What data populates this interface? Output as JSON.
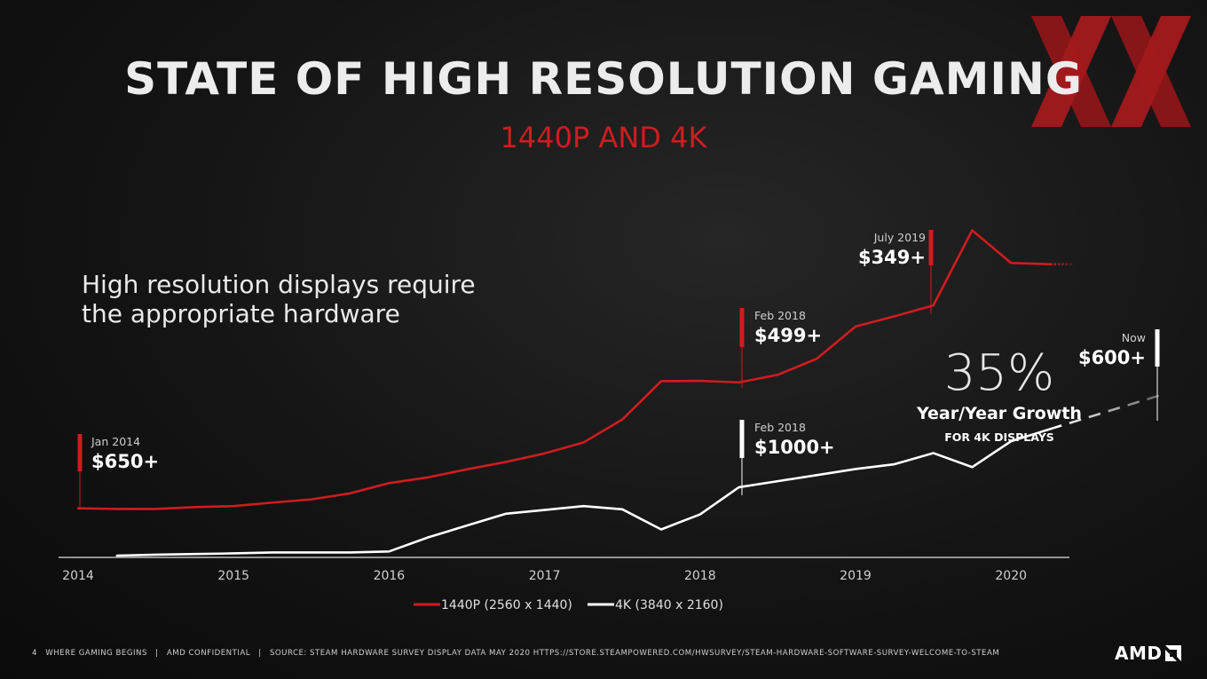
{
  "slide": {
    "title": "STATE OF HIGH RESOLUTION GAMING",
    "subtitle": "1440P AND 4K",
    "note_line1": "High resolution displays require",
    "note_line2": "the appropriate hardware",
    "growth_pct": "35%",
    "growth_label": "Year/Year Growth",
    "growth_sub": "FOR 4K DISPLAYS",
    "logo_text": "AMD",
    "xx_logo_text": "XX"
  },
  "footer": {
    "page_number": "4",
    "tagline": "WHERE GAMING BEGINS",
    "confidential": "AMD CONFIDENTIAL",
    "source": "SOURCE: STEAM HARDWARE SURVEY DISPLAY DATA MAY 2020 HTTPS://STORE.STEAMPOWERED.COM/HWSURVEY/STEAM-HARDWARE-SOFTWARE-SURVEY-WELCOME-TO-STEAM",
    "separator": "|"
  },
  "colors": {
    "accent_red": "#d01c1f",
    "line_white": "#ffffff",
    "axis": "#cfcfcf"
  },
  "chart_data": {
    "type": "line",
    "title": "",
    "xlabel": "",
    "ylabel": "",
    "x_ticks": [
      "2014",
      "2015",
      "2016",
      "2017",
      "2018",
      "2019",
      "2020"
    ],
    "xlim": [
      2014.0,
      2020.4
    ],
    "ylim": [
      0,
      100
    ],
    "grid": false,
    "y_axis_labeled": false,
    "legend_position": "bottom-center",
    "series": [
      {
        "name": "1440P (2560 x 1440)",
        "color": "#d01c1f",
        "x": [
          2014.0,
          2014.25,
          2014.5,
          2014.75,
          2015.0,
          2015.25,
          2015.5,
          2015.75,
          2016.0,
          2016.25,
          2016.5,
          2016.75,
          2017.0,
          2017.25,
          2017.5,
          2017.75,
          2018.0,
          2018.25,
          2018.5,
          2018.75,
          2019.0,
          2019.25,
          2019.5,
          2019.75,
          2020.0,
          2020.25
        ],
        "y": [
          14.8,
          14.6,
          14.6,
          15.2,
          15.5,
          16.6,
          17.6,
          19.5,
          22.7,
          24.5,
          27.0,
          29.3,
          32.0,
          35.4,
          42.6,
          54.6,
          54.7,
          54.2,
          56.6,
          61.6,
          71.7,
          74.9,
          78.3,
          101.8,
          91.6,
          91.2
        ],
        "projection": {
          "x": [
            2020.25,
            2020.4
          ],
          "y": [
            91.2,
            91.2
          ]
        }
      },
      {
        "name": "4K (3840 x 2160)",
        "color": "#ffffff",
        "x": [
          2014.25,
          2014.5,
          2014.75,
          2015.0,
          2015.25,
          2015.5,
          2015.75,
          2016.0,
          2016.25,
          2016.5,
          2016.75,
          2017.0,
          2017.25,
          2017.5,
          2017.75,
          2018.0,
          2018.25,
          2018.5,
          2018.75,
          2019.0,
          2019.25,
          2019.5,
          2019.75,
          2020.0,
          2020.25
        ],
        "y": [
          0.0,
          0.3,
          0.5,
          0.7,
          1.0,
          1.0,
          1.0,
          1.3,
          5.7,
          9.4,
          13.1,
          14.3,
          15.5,
          14.5,
          8.2,
          12.9,
          21.4,
          23.3,
          25.2,
          27.1,
          28.6,
          32.1,
          27.7,
          35.8,
          39.6
        ],
        "projection": {
          "x": [
            2020.25,
            2021.0
          ],
          "y": [
            39.6,
            50.8
          ]
        }
      }
    ],
    "annotations": [
      {
        "date": "Jan 2014",
        "price": "$650+",
        "x": 2014.0,
        "series": "1440P (2560 x 1440)"
      },
      {
        "date": "Feb 2018",
        "price": "$499+",
        "x": 2018.25,
        "series": "1440P (2560 x 1440)"
      },
      {
        "date": "July 2019",
        "price": "$349+",
        "x": 2019.5,
        "series": "1440P (2560 x 1440)"
      },
      {
        "date": "Feb 2018",
        "price": "$1000+",
        "x": 2018.25,
        "series": "4K (3840 x 2160)"
      },
      {
        "date": "Now",
        "price": "$600+",
        "x": 2021.0,
        "series": "4K (3840 x 2160)"
      }
    ]
  }
}
